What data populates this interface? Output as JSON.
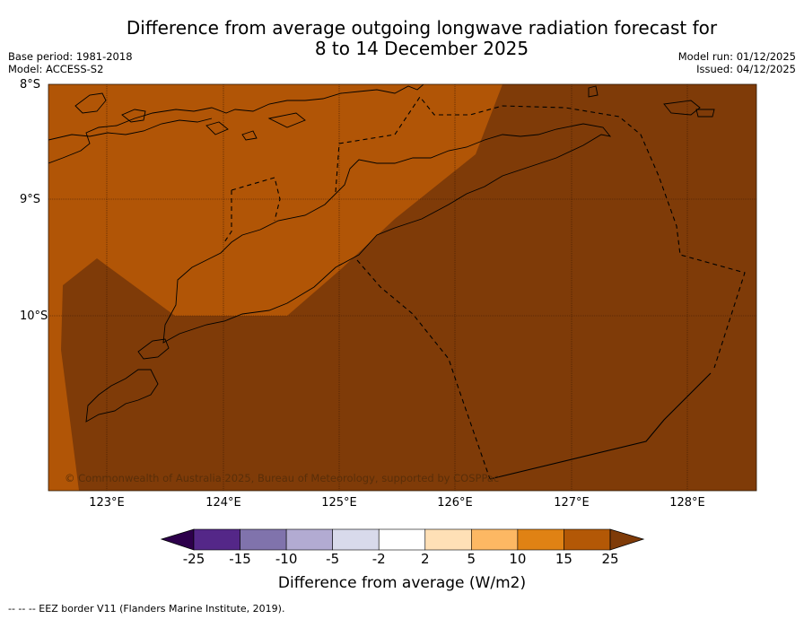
{
  "title_line1": "Difference from average outgoing longwave radiation forecast for",
  "title_line2": "8 to 14 December 2025",
  "base_period": "Base period: 1981-2018",
  "model": "Model: ACCESS-S2",
  "model_run": "Model run: 01/12/2025",
  "issued": "Issued: 04/12/2025",
  "map": {
    "lat_labels": [
      "8°S",
      "9°S",
      "10°S"
    ],
    "lon_labels": [
      "123°E",
      "124°E",
      "125°E",
      "126°E",
      "127°E",
      "128°E"
    ],
    "extent": {
      "lon_min": 122.5,
      "lon_max": 128.6,
      "lat_top": -8.0,
      "lat_bottom": -11.5
    },
    "regions": [
      {
        "category": "15 to 25",
        "color": "#b15506"
      },
      {
        "category": "above 25",
        "color": "#7f3b08"
      }
    ],
    "copyright": "© Commonwealth of Australia 2025, Bureau of Meteorology, supported by COSPPac"
  },
  "colorbar": {
    "title": "Difference from average (W/m2)",
    "ticks": [
      "-25",
      "-15",
      "-10",
      "-5",
      "-2",
      "2",
      "5",
      "10",
      "15",
      "25"
    ],
    "colors": [
      "#2d004b",
      "#542788",
      "#8073ac",
      "#b2abd2",
      "#d8daeb",
      "#ffffff",
      "#fee0b6",
      "#fdb863",
      "#e08214",
      "#b35806",
      "#7f3b08"
    ]
  },
  "footnote": "--  --  -- EEZ border V11 (Flanders Marine Institute, 2019)."
}
